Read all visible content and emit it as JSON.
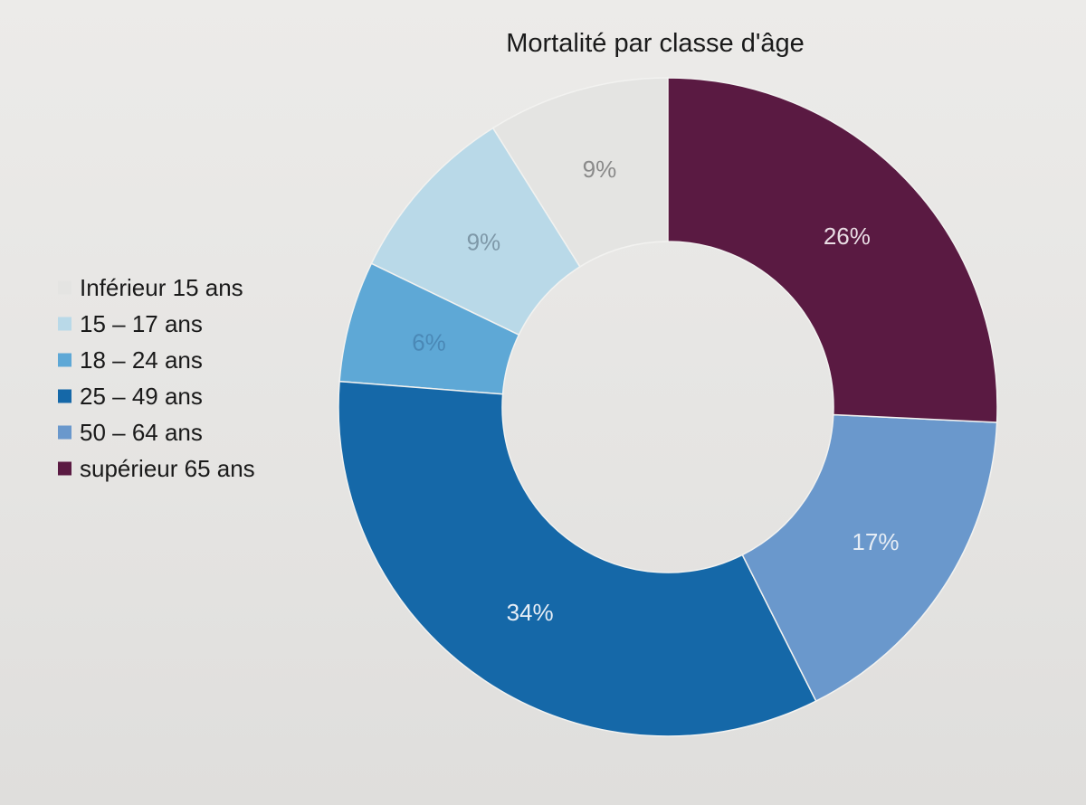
{
  "chart_data": {
    "type": "pie",
    "title": "Mortalité par classe d'âge",
    "donut": true,
    "categories": [
      "Inférieur 15 ans",
      "15 – 17 ans",
      "18 – 24 ans",
      "25 – 49 ans",
      "50 – 64 ans",
      "supérieur 65 ans"
    ],
    "values": [
      9,
      9,
      6,
      34,
      17,
      26
    ],
    "data_labels": [
      "9%",
      "9%",
      "6%",
      "34%",
      "17%",
      "26%"
    ],
    "colors": [
      "#e4e4e2",
      "#b9d9e8",
      "#5ea8d6",
      "#1568a8",
      "#6a98cc",
      "#5a1a42"
    ],
    "label_colors": [
      "#8a8a8a",
      "#7e98a8",
      "#4a88b6",
      "#e7eef6",
      "#e6edf5",
      "#e9dde4"
    ],
    "legend_position": "left"
  }
}
